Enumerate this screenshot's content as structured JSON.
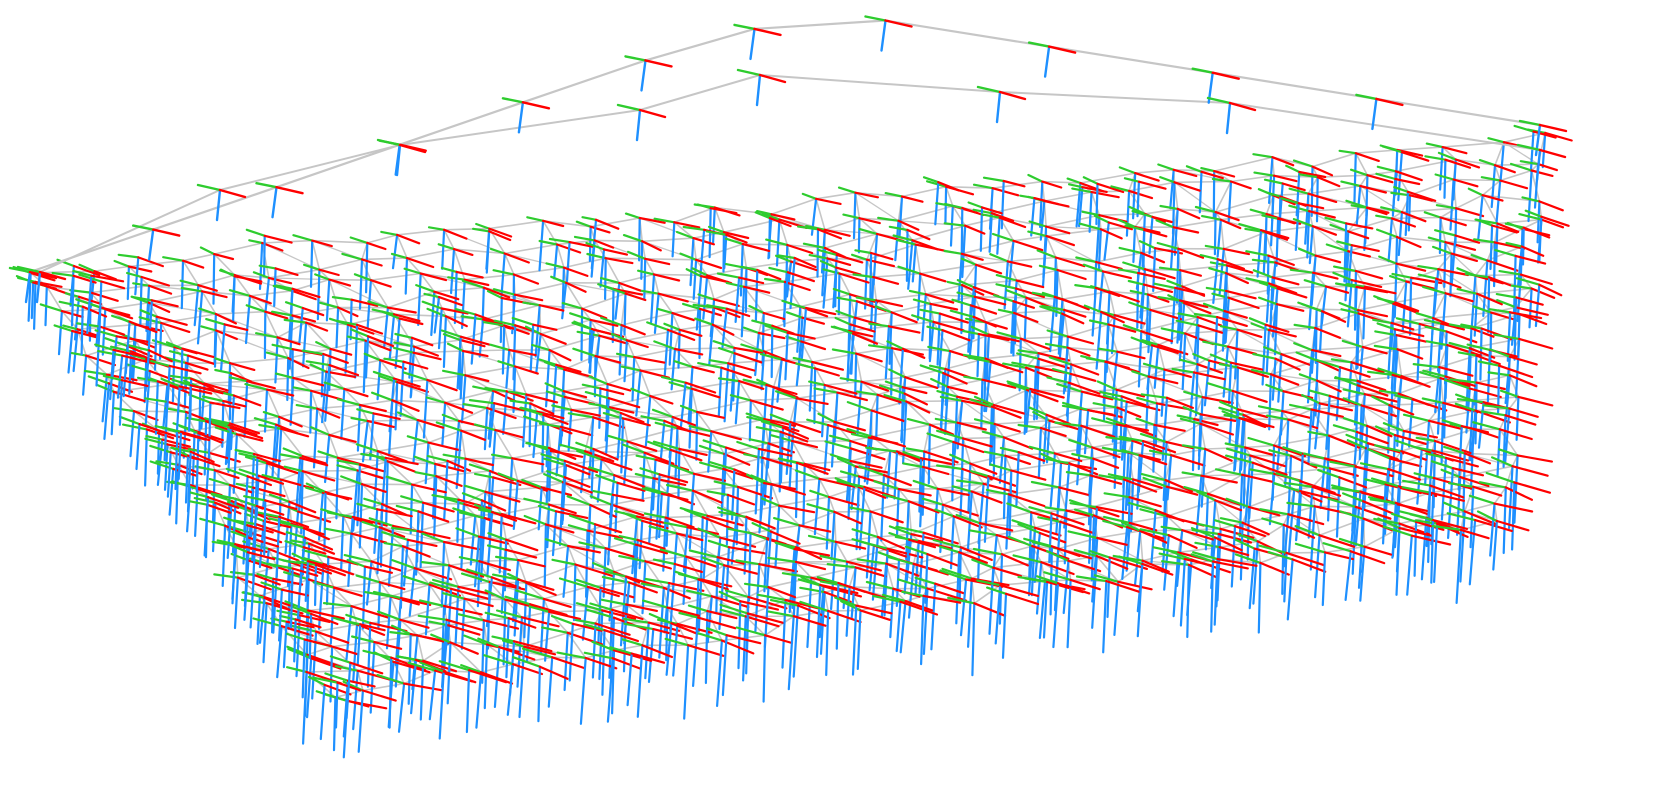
{
  "scene": {
    "kind": "pose-graph-3d",
    "background": "#ffffff",
    "colors": {
      "edge": "#c6c6c6",
      "axis_x": "#ff0000",
      "axis_y": "#2ecc2e",
      "axis_z": "#1e90ff"
    },
    "mesh": {
      "rows": 22,
      "cols": 34
    },
    "trajectory_nodes": 12
  }
}
